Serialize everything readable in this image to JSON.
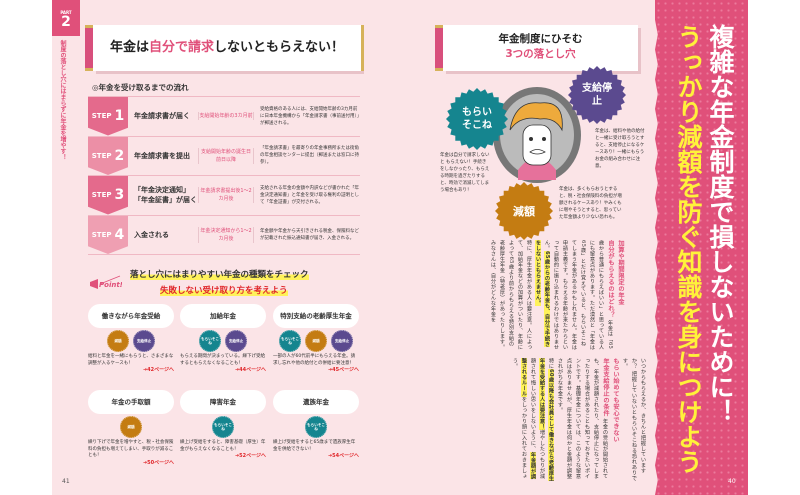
{
  "left_page": {
    "part_label": "PART",
    "part_number": "2",
    "side_title": "制度の落とし穴にはまらずに年金を増やす！",
    "title_pre": "年金は",
    "title_accent": "自分で請求",
    "title_post": "しないともらえない！",
    "flow_heading": "◎年金を受け取るまでの流れ",
    "steps": [
      {
        "step": "STEP",
        "num": "1",
        "title": "年金請求書が届く",
        "timing": "支給開始年齢の3カ月前",
        "desc": "受給資格のある人には、支給開始年齢の3カ月前に日本年金機構から「年金請求書（事前送付用）」が郵送される。"
      },
      {
        "step": "STEP",
        "num": "2",
        "title": "年金請求書を提出",
        "timing": "支給開始年齢の誕生日前日以降",
        "desc": "「年金請求書」を最寄りの年金事務所または街角の年金相談センターに提出（郵送または窓口に持参）。"
      },
      {
        "step": "STEP",
        "num": "3",
        "title": "「年金決定通知」「年金証書」が届く",
        "timing": "年金請求書提出後1〜2カ月後",
        "desc": "支給される年金の金額や内訳などが書かれた「年金決定通知書」と年金を受け取る権利の証明として「年金証書」が交付される。"
      },
      {
        "step": "STEP",
        "num": "4",
        "title": "入金される",
        "timing": "年金決定通知から1〜2カ月後",
        "desc": "年金額や年金から天引きされる税金、保険料などが記載された振込通知書が届き、入金される。"
      }
    ],
    "point": {
      "badge": "Point!",
      "line1": "落とし穴にはまりやすい年金の種類をチェック",
      "line2": "失敗しない受け取り方を考えよう"
    },
    "cards": [
      {
        "title": "働きながら年金受給",
        "badges": [
          {
            "label": "減額",
            "color": "orange"
          },
          {
            "label": "支給停止",
            "color": "purple"
          }
        ],
        "text": "給料と年金を一緒にもらうと、さまざまな調整が入るケースも！",
        "link": "➜42ページへ"
      },
      {
        "title": "加給年金",
        "badges": [
          {
            "label": "もらいそこね",
            "color": "teal"
          },
          {
            "label": "支給停止",
            "color": "purple"
          }
        ],
        "text": "もらえる期間が決まっている。繰下げ受給するともらえなくなることも！",
        "link": "➜44ページへ"
      },
      {
        "title": "特別支給の老齢厚生年金",
        "badges": [
          {
            "label": "もらいそこね",
            "color": "teal"
          },
          {
            "label": "減額",
            "color": "orange"
          },
          {
            "label": "支給停止",
            "color": "purple"
          }
        ],
        "text": "一部の人が60代前半にもらえる年金。請求し忘れや他の給付との併給に要注意！",
        "link": "➜45ページへ"
      },
      {
        "title": "年金の手取額",
        "badges": [
          {
            "label": "減額",
            "color": "orange"
          }
        ],
        "text": "繰り下げで年金を増やすと、税・社会保険料の負担も増えてしまい、手取りが減ることも！",
        "link": "➜50ページへ"
      },
      {
        "title": "障害年金",
        "badges": [
          {
            "label": "もらいそこね",
            "color": "teal"
          }
        ],
        "text": "繰上げ受給をすると、障害基礎（厚生）年金がもらえなくなることも！",
        "link": "➜52ページへ"
      },
      {
        "title": "遺族年金",
        "badges": [
          {
            "label": "もらいそこね",
            "color": "teal"
          }
        ],
        "text": "繰上げ受給をすると65歳まで遺族厚生年金を併給できない！",
        "link": "➜54ページへ"
      }
    ],
    "page_number": "41"
  },
  "right_page": {
    "title_line1": "年金制度にひそむ",
    "title_line2": "3つの落とし穴",
    "badges": {
      "miss": "もらいそこね",
      "stop": "支給停止",
      "reduce": "減額"
    },
    "miss_text": "年金は自分で請求しないと もらえない！手続きをしなかったり、もらえる時期を過ぎたりすると、時効で消滅してしまう場合もあり！",
    "stop_text": "年金は、給料や他の給付と一緒に受け取ろうとすると、支給停止になるケースあり！一緒にもらうお金の組み合わせに注意。",
    "reduce_text": "年金は、多くもらおうとすると、税・社会保険料の負担が増額されるケースあり！やみくもに増やそうとすると、思っていた年金額より少ない恐れも。",
    "sec1_heading1": "加算や期間限定の年金",
    "sec1_heading2": "自分がもらえるのはどれ？",
    "sec1_body_a": "年金は「65歳から普通にもらえばいい」と思っている人にも留意点があります。ただ漠然と「年金は65歳」とだけ覚えていると、もらいそこねてしまう年金があるかもしれません。年金は申請主義です。もらえる年齢が来たからといって自動的に振り込まれるわけではありません。",
    "sec1_highlight": "65歳からの老齢年金も、自分で手続きをしないともらえません。",
    "sec1_body_b": "特に、厚生年金がある人は要注意。人によって、加給年金などの加算がついたり、年齢によって65歳より前からもらえる特別支給の老齢厚生年金（特老厚）があったりします。",
    "sec1_body_c": "みなさんは、自分がどんな年金を",
    "sec2_lead": "いつからもらえるか、きちんと把握していますか？ 把握していないともらいそこねる恐れありです。",
    "sec2_heading1": "もらい始めても安心できない",
    "sec2_heading2": "年金支給停止の条件",
    "sec2_body_a": "年金の受給が開始されても、年金が減額されたり、支給停止になってしまったりする場合があることも知っておきたいポイントです。基礎年金については、このような留意点はありませんが、厚生年金は何かと金額が調整されがちな年金です。",
    "sec2_body_b_pre": "特に",
    "sec2_highlight1": "60歳以降も会社員として働きながら老齢厚生年金を受給する人は要注意！",
    "sec2_body_b_mid": "増やしたつもりが減額されて悔しい思いをしないように、",
    "sec2_highlight2": "年金額が調整されるルール",
    "sec2_body_b_post": "をしっかり頭に入れておきましょう。",
    "banner_line1": "複雑な年金制度で損しないために！",
    "banner_line2": "うっかり減額を防ぐ知識を身につけよう",
    "page_number": "40"
  },
  "colors": {
    "accent": "#e0507a",
    "page_bg": "#fbe4e7",
    "teal": "#15858f",
    "purple": "#5b4a8f",
    "orange": "#c47c12",
    "highlight": "#fff25a",
    "link_red": "#e0262a"
  }
}
